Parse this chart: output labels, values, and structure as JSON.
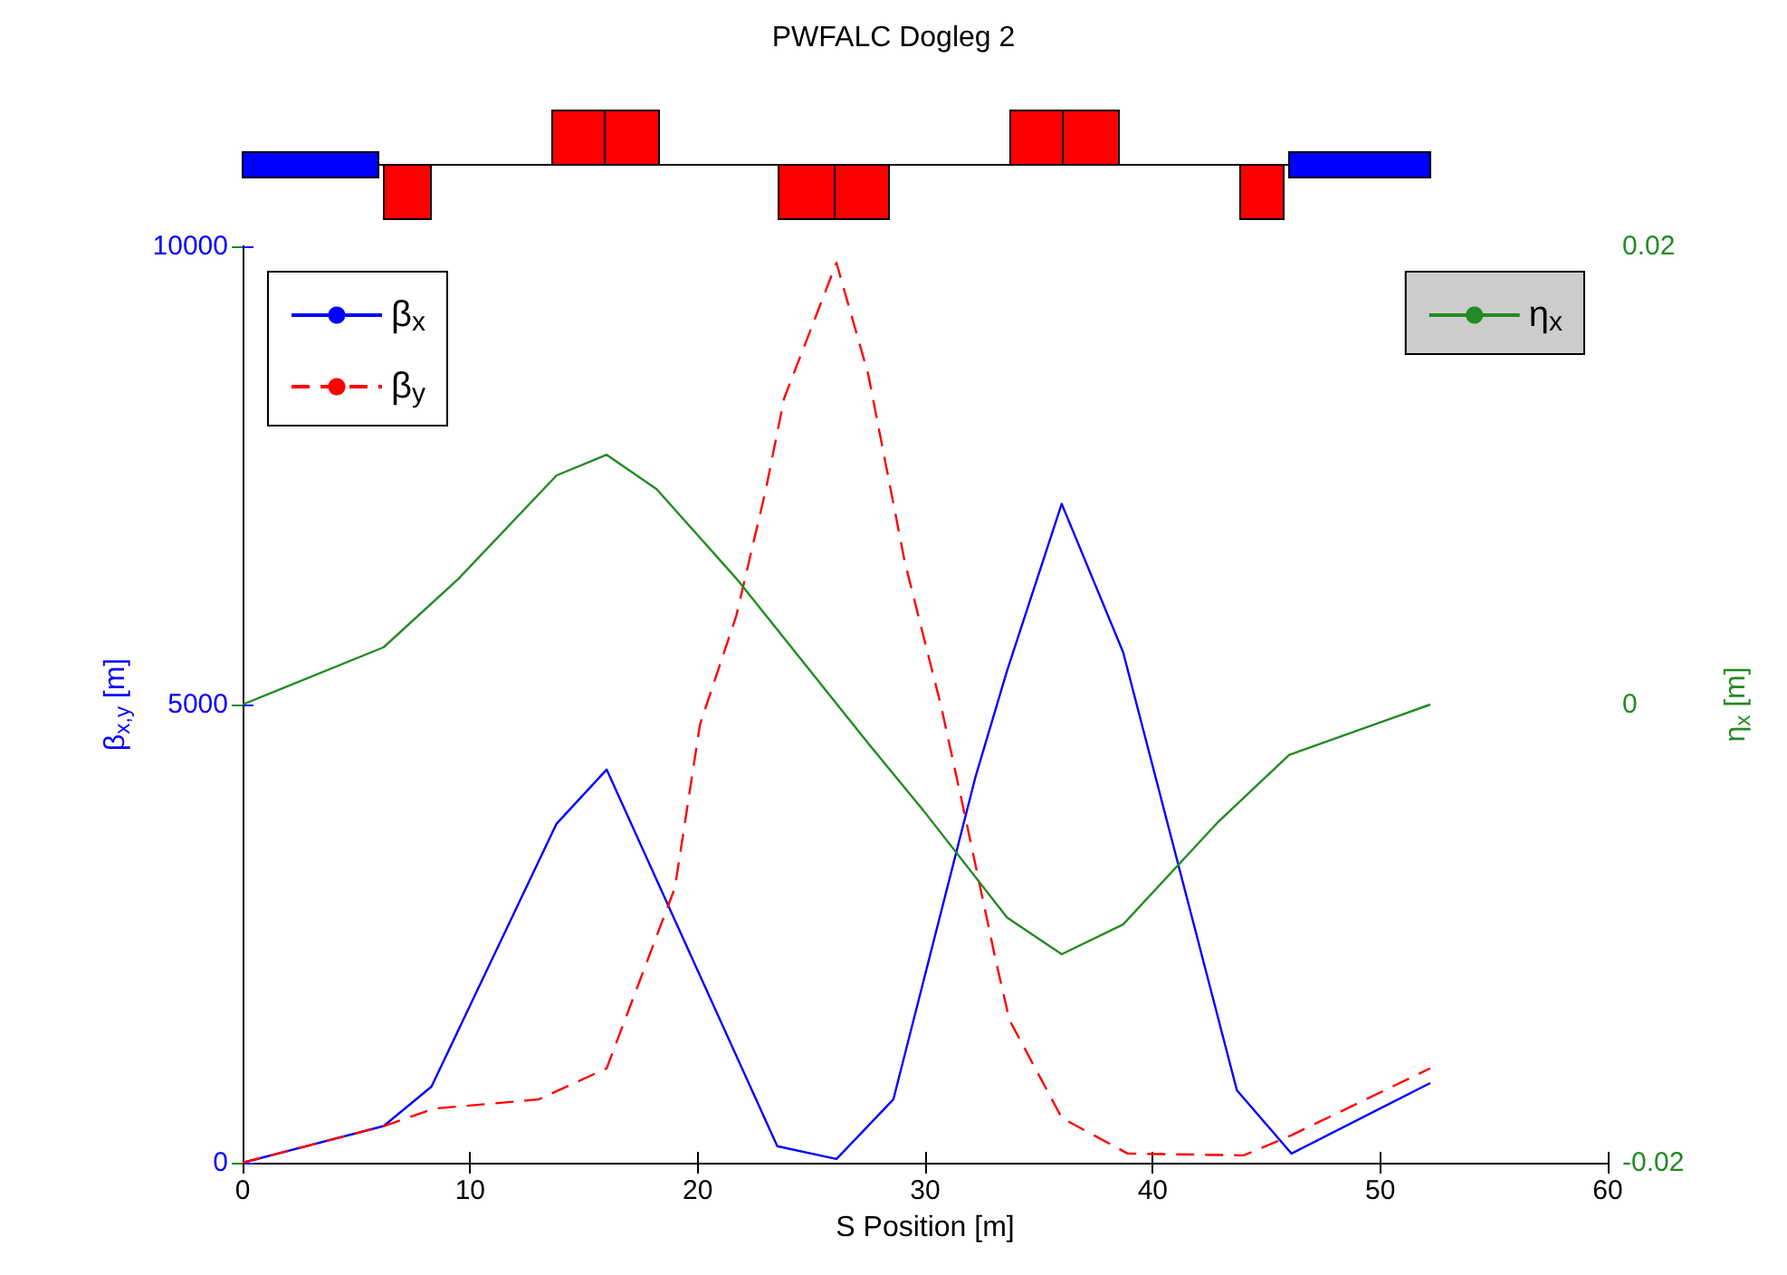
{
  "chart_data": {
    "type": "line",
    "title": "PWFALC Dogleg 2",
    "xlabel": "S Position [m]",
    "ylabel": "β$_{x,y}$ [m]",
    "y2label": "η$_{x}$ [m]",
    "xlim": [
      0,
      60
    ],
    "xticks": [
      0,
      10,
      20,
      30,
      40,
      50,
      60
    ],
    "ylim": [
      0,
      10000
    ],
    "yticks": [
      0,
      5000,
      10000
    ],
    "y2lim": [
      -0.02,
      0.02
    ],
    "y2ticks": [
      -0.02,
      0,
      0.02
    ],
    "grid": false,
    "legend": "top",
    "marker": "none",
    "series": [
      {
        "name": "β$_{x}$",
        "color": "#0000ff",
        "line_style": "solid",
        "x": [
          0,
          6.2,
          8.3,
          13.8,
          16.0,
          23.5,
          26.1,
          28.6,
          32.2,
          33.6,
          36.0,
          38.7,
          43.7,
          46.1,
          52.2
        ],
        "values": [
          0,
          400,
          830,
          3700,
          4290,
          180,
          40,
          690,
          4200,
          5370,
          7190,
          5570,
          790,
          100,
          870
        ]
      },
      {
        "name": "β$_{y}$",
        "color": "#ff0000",
        "line_style": "dashed",
        "x": [
          0,
          6.2,
          8.4,
          13.0,
          16.0,
          19.0,
          20.1,
          21.7,
          23.0,
          23.8,
          26.1,
          27.5,
          29.1,
          30.7,
          31.8,
          33.1,
          33.7,
          36.0,
          38.9,
          44.0,
          46.1,
          52.2
        ],
        "values": [
          0,
          400,
          590,
          690,
          1030,
          3000,
          4780,
          5970,
          7350,
          8340,
          9820,
          8600,
          6560,
          4980,
          3730,
          2210,
          1560,
          490,
          100,
          80,
          300,
          1030
        ]
      },
      {
        "name": "η$_{x}$",
        "color": "#228b22",
        "line_style": "solid",
        "axis": "y2",
        "x": [
          0,
          6.2,
          9.5,
          13.8,
          16.0,
          18.2,
          21.7,
          27.5,
          29.9,
          33.6,
          36.0,
          38.7,
          42.9,
          46.0,
          52.2
        ],
        "values": [
          0,
          0.0025,
          0.0055,
          0.01,
          0.0109,
          0.0094,
          0.0055,
          -0.0017,
          -0.0046,
          -0.0093,
          -0.0109,
          -0.0096,
          -0.0051,
          -0.0022,
          0
        ]
      }
    ]
  }
}
